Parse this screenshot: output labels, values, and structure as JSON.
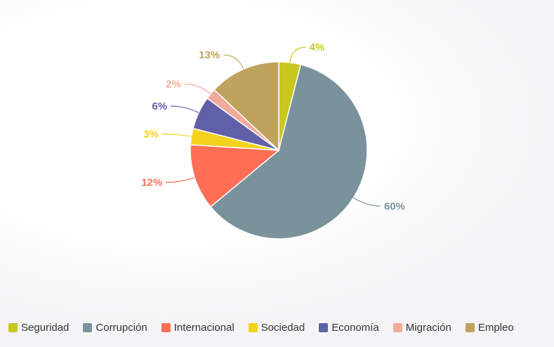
{
  "chart_data": {
    "type": "pie",
    "slices": [
      {
        "name": "Seguridad",
        "value": 4,
        "label": "4%",
        "color": "#c8c81e"
      },
      {
        "name": "Corrupción",
        "value": 60,
        "label": "60%",
        "color": "#7a929c"
      },
      {
        "name": "Internacional",
        "value": 12,
        "label": "12%",
        "color": "#ff6e55"
      },
      {
        "name": "Sociedad",
        "value": 3,
        "label": "3%",
        "color": "#f5d21e"
      },
      {
        "name": "Economía",
        "value": 6,
        "label": "6%",
        "color": "#6060a8"
      },
      {
        "name": "Migración",
        "value": 2,
        "label": "2%",
        "color": "#f2aa9a"
      },
      {
        "name": "Empleo",
        "value": 13,
        "label": "13%",
        "color": "#bea25e"
      }
    ],
    "legend_position": "bottom-left"
  }
}
